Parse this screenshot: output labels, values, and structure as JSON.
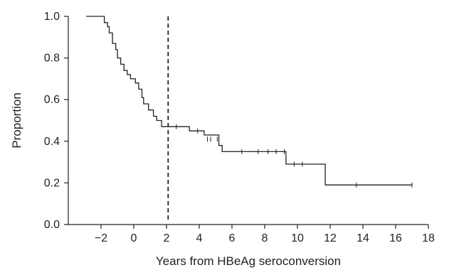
{
  "chart_data": {
    "type": "line",
    "subtype": "kaplan-meier step curve",
    "xlabel": "Years from HBeAg seroconversion",
    "ylabel": "Proportion",
    "xlim": [
      -4,
      18
    ],
    "ylim": [
      0,
      1.0
    ],
    "xticks": [
      -2,
      0,
      2,
      4,
      6,
      8,
      10,
      12,
      14,
      16,
      18
    ],
    "xtick_labels": [
      "−2",
      "0",
      "2",
      "4",
      "6",
      "8",
      "10",
      "12",
      "14",
      "16",
      "18"
    ],
    "yticks": [
      0.0,
      0.2,
      0.4,
      0.6,
      0.8,
      1.0
    ],
    "ytick_labels": [
      "0.0",
      "0.2",
      "0.4",
      "0.6",
      "0.8",
      "1.0"
    ],
    "grid": false,
    "reference_line": {
      "x": 2.1,
      "style": "dashed",
      "y_range": [
        0.02,
        1.0
      ]
    },
    "series": [
      {
        "steps": [
          [
            -2.9,
            1.0
          ],
          [
            -1.8,
            0.97
          ],
          [
            -1.6,
            0.95
          ],
          [
            -1.5,
            0.92
          ],
          [
            -1.3,
            0.87
          ],
          [
            -1.1,
            0.84
          ],
          [
            -1.0,
            0.8
          ],
          [
            -0.8,
            0.77
          ],
          [
            -0.6,
            0.74
          ],
          [
            -0.4,
            0.72
          ],
          [
            -0.2,
            0.7
          ],
          [
            0.1,
            0.68
          ],
          [
            0.3,
            0.65
          ],
          [
            0.5,
            0.61
          ],
          [
            0.6,
            0.58
          ],
          [
            0.9,
            0.55
          ],
          [
            1.2,
            0.52
          ],
          [
            1.4,
            0.5
          ],
          [
            1.7,
            0.47
          ],
          [
            3.4,
            0.45
          ],
          [
            4.3,
            0.43
          ],
          [
            5.2,
            0.38
          ],
          [
            5.4,
            0.35
          ],
          [
            9.3,
            0.29
          ],
          [
            11.7,
            0.19
          ],
          [
            17.0,
            0.19
          ]
        ],
        "censored": [
          [
            2.6,
            0.47
          ],
          [
            3.9,
            0.45
          ],
          [
            4.5,
            0.41
          ],
          [
            4.7,
            0.41
          ],
          [
            5.1,
            0.41
          ],
          [
            6.6,
            0.35
          ],
          [
            7.6,
            0.35
          ],
          [
            8.2,
            0.35
          ],
          [
            8.7,
            0.35
          ],
          [
            9.2,
            0.35
          ],
          [
            9.8,
            0.29
          ],
          [
            10.3,
            0.29
          ],
          [
            13.6,
            0.19
          ],
          [
            17.0,
            0.19
          ]
        ]
      }
    ]
  }
}
